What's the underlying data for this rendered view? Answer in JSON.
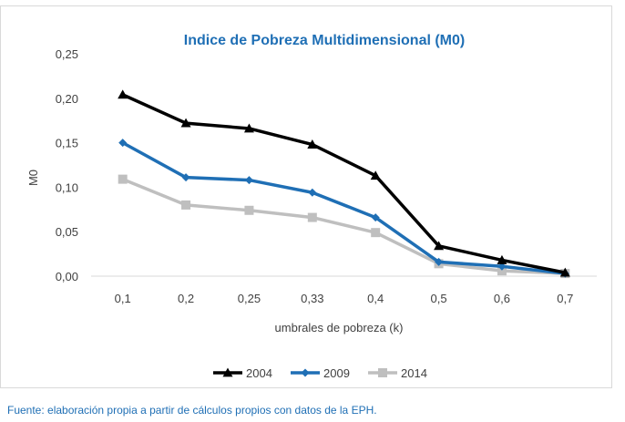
{
  "chart_data": {
    "type": "line",
    "title": "Indice de Pobreza Multidimensional (M0)",
    "xlabel": "umbrales de pobreza (k)",
    "ylabel": "M0",
    "categories": [
      "0,1",
      "0,2",
      "0,25",
      "0,33",
      "0,4",
      "0,5",
      "0,6",
      "0,7"
    ],
    "ylim": [
      0,
      0.25
    ],
    "yticks": [
      "0,00",
      "0,05",
      "0,10",
      "0,15",
      "0,20",
      "0,25"
    ],
    "grid": false,
    "legend_position": "bottom",
    "series": [
      {
        "name": "2004",
        "color": "#000000",
        "marker": "triangle",
        "values": [
          0.204,
          0.172,
          0.166,
          0.148,
          0.113,
          0.034,
          0.018,
          0.004
        ]
      },
      {
        "name": "2009",
        "color": "#1f6fb5",
        "marker": "diamond",
        "values": [
          0.15,
          0.111,
          0.108,
          0.094,
          0.066,
          0.016,
          0.011,
          0.003
        ]
      },
      {
        "name": "2014",
        "color": "#bfbfbf",
        "marker": "square",
        "values": [
          0.109,
          0.08,
          0.074,
          0.066,
          0.049,
          0.014,
          0.006,
          0.003
        ]
      }
    ]
  },
  "footer": {
    "source": "Fuente: elaboración propia a partir de cálculos propios con datos de la EPH."
  }
}
